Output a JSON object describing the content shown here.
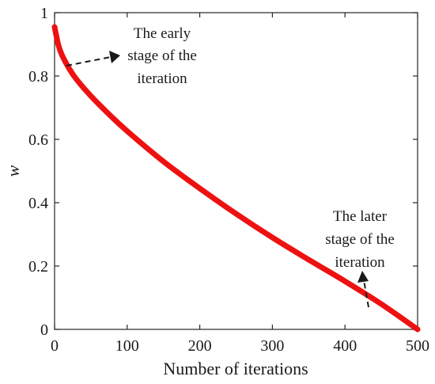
{
  "chart_data": {
    "type": "line",
    "xlabel": "Number of iterations",
    "ylabel": "w",
    "xlim": [
      0,
      500
    ],
    "ylim": [
      0,
      1
    ],
    "x_ticks": [
      "0",
      "100",
      "200",
      "300",
      "400",
      "500"
    ],
    "y_ticks": [
      "0",
      "0.2",
      "0.4",
      "0.6",
      "0.8",
      "1"
    ],
    "grid": false,
    "series_color": "#ee1111",
    "series": [
      {
        "x": [
          0,
          5,
          10,
          20,
          30,
          50,
          75,
          100,
          150,
          200,
          250,
          300,
          350,
          400,
          450,
          500
        ],
        "y": [
          0.955,
          0.9,
          0.867,
          0.824,
          0.79,
          0.737,
          0.679,
          0.626,
          0.53,
          0.445,
          0.365,
          0.29,
          0.22,
          0.152,
          0.08,
          0.0
        ]
      }
    ],
    "annotations": [
      {
        "lines": [
          "The early",
          "stage of the",
          "iteration"
        ]
      },
      {
        "lines": [
          "The later",
          "stage of the",
          "iteration"
        ]
      }
    ]
  }
}
